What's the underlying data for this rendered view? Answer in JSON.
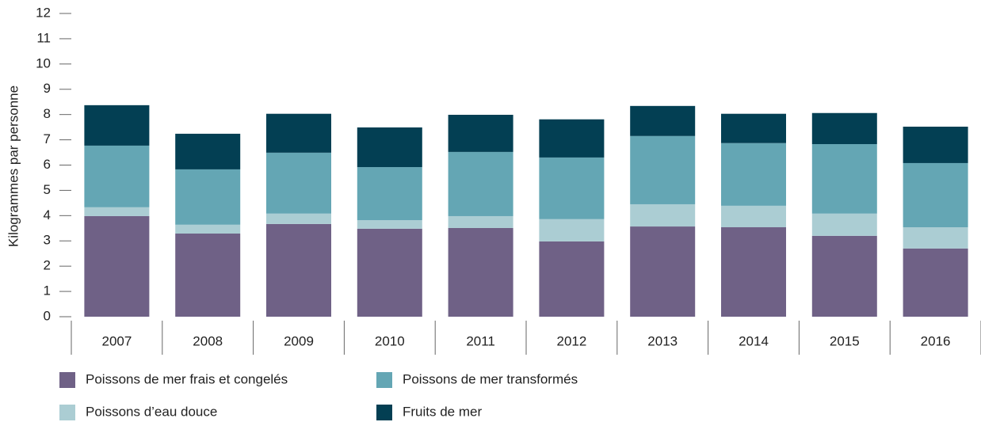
{
  "chart_data": {
    "type": "stacked_bar",
    "y_label": "Kilogrammes par personne",
    "categories": [
      "2007",
      "2008",
      "2009",
      "2010",
      "2011",
      "2012",
      "2013",
      "2014",
      "2015",
      "2016"
    ],
    "series": [
      {
        "name": "Poissons de mer frais et congelés",
        "color": "#6f6186",
        "values": [
          3.98,
          3.29,
          3.67,
          3.48,
          3.51,
          2.98,
          3.57,
          3.54,
          3.2,
          2.7
        ]
      },
      {
        "name": "Poissons d’eau douce",
        "color": "#abcdd3",
        "values": [
          0.35,
          0.35,
          0.41,
          0.34,
          0.47,
          0.88,
          0.88,
          0.85,
          0.88,
          0.84
        ]
      },
      {
        "name": "Poissons de mer transformés",
        "color": "#64a6b4",
        "values": [
          2.44,
          2.19,
          2.41,
          2.1,
          2.54,
          2.44,
          2.7,
          2.48,
          2.75,
          2.54
        ]
      },
      {
        "name": "Fruits de mer",
        "color": "#033f53",
        "values": [
          1.6,
          1.41,
          1.54,
          1.57,
          1.47,
          1.51,
          1.19,
          1.16,
          1.23,
          1.44
        ]
      }
    ],
    "ylim": [
      0,
      12
    ],
    "yticks": [
      0,
      1,
      2,
      3,
      4,
      5,
      6,
      7,
      8,
      9,
      10,
      11,
      12
    ]
  }
}
